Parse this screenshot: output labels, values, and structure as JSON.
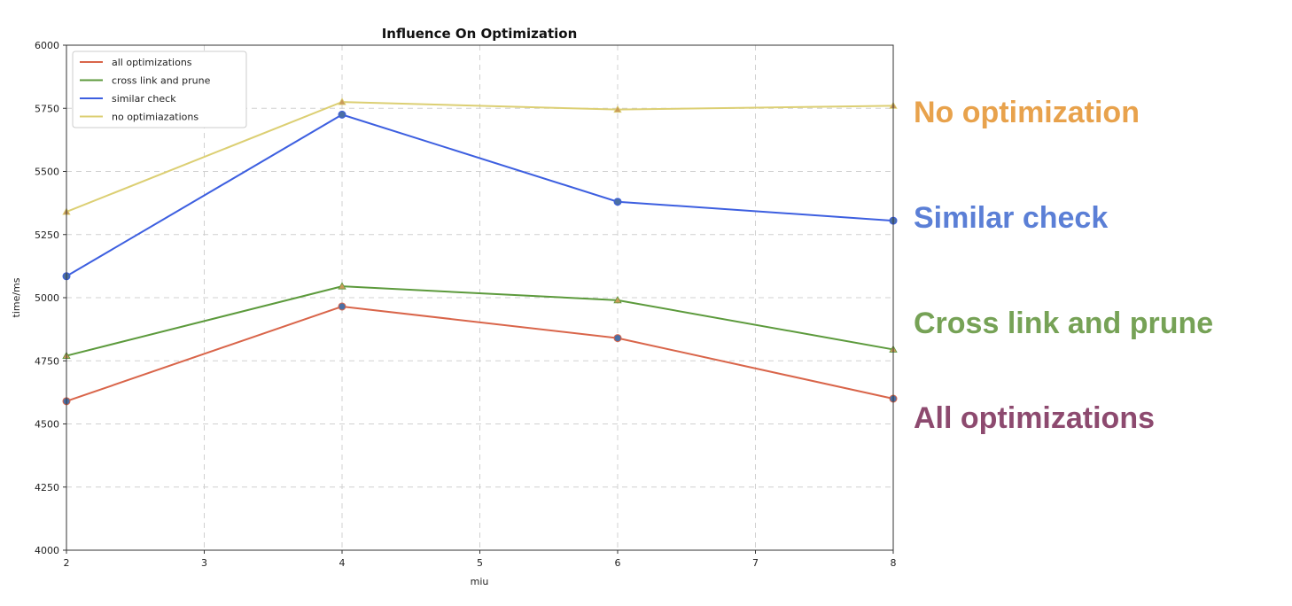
{
  "chart_data": {
    "type": "line",
    "title": "Influence On Optimization",
    "xlabel": "miu",
    "ylabel": "time/ms",
    "xlim": [
      2,
      8
    ],
    "ylim": [
      4000,
      6000
    ],
    "xticks": [
      2,
      3,
      4,
      5,
      6,
      7,
      8
    ],
    "yticks": [
      4000,
      4250,
      4500,
      4750,
      5000,
      5250,
      5500,
      5750,
      6000
    ],
    "grid": true,
    "legend_position": "top-left",
    "x": [
      2,
      4,
      6,
      8
    ],
    "series": [
      {
        "name": "all optimizations",
        "color": "#d9654a",
        "values": [
          4590,
          4965,
          4840,
          4600
        ]
      },
      {
        "name": "cross link and prune",
        "color": "#5c9a3c",
        "values": [
          4770,
          5045,
          4990,
          4795
        ]
      },
      {
        "name": "similar check",
        "color": "#3d5fe0",
        "values": [
          5085,
          5725,
          5380,
          5305
        ]
      },
      {
        "name": "no optimiazations",
        "color": "#dccf73",
        "values": [
          5340,
          5775,
          5745,
          5760
        ]
      }
    ]
  },
  "side_labels": [
    {
      "text": "No optimization",
      "color": "#e8a24c"
    },
    {
      "text": "Similar check",
      "color": "#5b7fd6"
    },
    {
      "text": "Cross link and prune",
      "color": "#76a256"
    },
    {
      "text": "All optimizations",
      "color": "#8d4a6f"
    }
  ]
}
